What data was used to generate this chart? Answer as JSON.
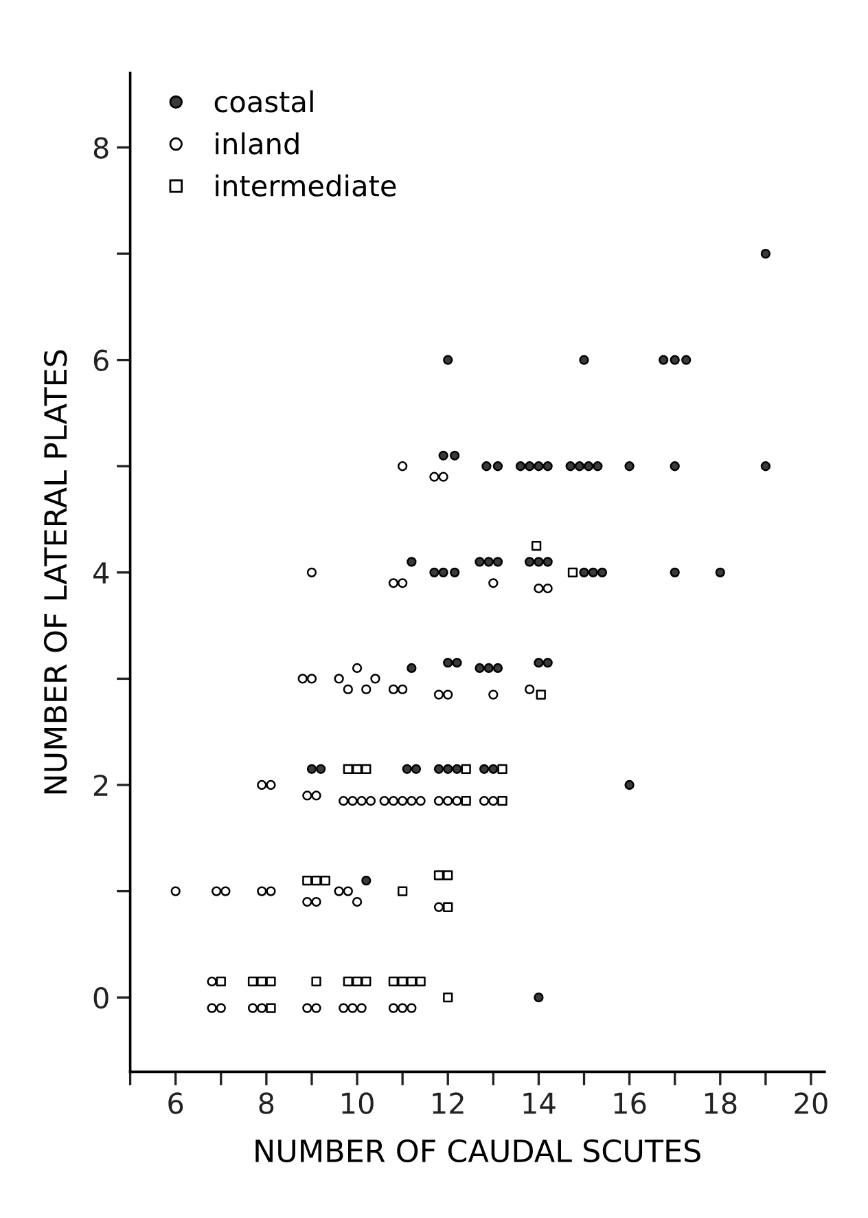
{
  "chart_data": {
    "type": "scatter",
    "xlabel": "NUMBER OF CAUDAL SCUTES",
    "ylabel": "NUMBER OF LATERAL PLATES",
    "xlim": [
      5,
      20.3
    ],
    "ylim": [
      -0.7,
      8.7
    ],
    "xticks": [
      {
        "value": 5,
        "label": null
      },
      6,
      {
        "value": 7,
        "label": null
      },
      8,
      {
        "value": 9,
        "label": null
      },
      10,
      {
        "value": 11,
        "label": null
      },
      12,
      {
        "value": 13,
        "label": null
      },
      14,
      {
        "value": 15,
        "label": null
      },
      16,
      {
        "value": 17,
        "label": null
      },
      18,
      {
        "value": 19,
        "label": null
      },
      20
    ],
    "yticks": [
      0,
      {
        "value": 1,
        "label": null
      },
      2,
      {
        "value": 3,
        "label": null
      },
      4,
      {
        "value": 5,
        "label": null
      },
      6,
      {
        "value": 7,
        "label": null
      },
      8
    ],
    "grid": false,
    "legend": "top left",
    "series": [
      {
        "name": "coastal",
        "color": "#3a3a3a",
        "marker": "circle",
        "x": [
          19,
          12,
          15,
          16.75,
          17,
          17.25,
          11.9,
          12.15,
          12.85,
          13.1,
          13.6,
          13.8,
          14.0,
          14.2,
          14.7,
          14.9,
          15.1,
          15.3,
          16,
          17,
          19,
          11.2,
          11.7,
          11.9,
          12.15,
          12.7,
          12.9,
          13.1,
          13.8,
          14.0,
          14.2,
          15.0,
          15.2,
          15.4,
          17,
          18,
          11.2,
          12.0,
          12.2,
          12.7,
          12.9,
          13.1,
          14.0,
          14.2,
          9.0,
          9.2,
          11.1,
          11.3,
          11.8,
          12.0,
          12.2,
          12.8,
          13.0,
          16,
          10.2,
          14
        ],
        "values": [
          7,
          6,
          6,
          6,
          6,
          6,
          5.1,
          5.1,
          5,
          5,
          5,
          5,
          5,
          5,
          5,
          5,
          5,
          5,
          5,
          5,
          5,
          4.1,
          4,
          4,
          4,
          4.1,
          4.1,
          4.1,
          4.1,
          4.1,
          4.1,
          4,
          4,
          4,
          4,
          4,
          3.1,
          3.15,
          3.15,
          3.1,
          3.1,
          3.1,
          3.15,
          3.15,
          2.15,
          2.15,
          2.15,
          2.15,
          2.15,
          2.15,
          2.15,
          2.15,
          2.15,
          2,
          1.1,
          0
        ]
      },
      {
        "name": "inland",
        "color": "#ffffff",
        "marker": "circle",
        "x": [
          11,
          11.7,
          11.9,
          9,
          10.8,
          11.0,
          13.0,
          14.0,
          14.2,
          8.8,
          9.0,
          9.6,
          9.8,
          10.0,
          10.2,
          10.4,
          10.8,
          11.0,
          11.8,
          12.0,
          13.0,
          13.8,
          7.9,
          8.1,
          8.9,
          9.1,
          9.7,
          9.9,
          10.1,
          10.3,
          10.6,
          10.8,
          11.0,
          11.2,
          11.4,
          11.8,
          12.0,
          12.2,
          12.8,
          13.0,
          6,
          6.9,
          7.1,
          7.9,
          8.1,
          8.9,
          9.1,
          9.6,
          9.8,
          10.0,
          11.8,
          6.8,
          7.0,
          6.8,
          7.7,
          7.9,
          8.9,
          9.1,
          9.7,
          9.9,
          10.1,
          10.8,
          11.0,
          11.2
        ],
        "values": [
          5,
          4.9,
          4.9,
          4,
          3.9,
          3.9,
          3.9,
          3.85,
          3.85,
          3,
          3,
          3,
          2.9,
          3.1,
          2.9,
          3,
          2.9,
          2.9,
          2.85,
          2.85,
          2.85,
          2.9,
          2,
          2,
          1.9,
          1.9,
          1.85,
          1.85,
          1.85,
          1.85,
          1.85,
          1.85,
          1.85,
          1.85,
          1.85,
          1.85,
          1.85,
          1.85,
          1.85,
          1.85,
          1,
          1,
          1,
          1,
          1,
          0.9,
          0.9,
          1,
          1,
          0.9,
          0.85,
          -0.1,
          -0.1,
          0.15,
          -0.1,
          -0.1,
          -0.1,
          -0.1,
          -0.1,
          -0.1,
          -0.1,
          -0.1,
          -0.1,
          -0.1
        ]
      },
      {
        "name": "intermediate",
        "color": "#ffffff",
        "marker": "square",
        "x": [
          14.75,
          13.95,
          14.05,
          9.8,
          10.0,
          10.2,
          12.4,
          12.4,
          13.2,
          13.2,
          8.9,
          9.1,
          9.3,
          11,
          11.8,
          12.0,
          12.0,
          7.0,
          7.7,
          7.9,
          8.1,
          8.1,
          9.1,
          9.8,
          10.0,
          10.2,
          10.8,
          11.0,
          11.2,
          11.4,
          12
        ],
        "values": [
          4,
          4.25,
          2.85,
          2.15,
          2.15,
          2.15,
          2.15,
          1.85,
          2.15,
          1.85,
          1.1,
          1.1,
          1.1,
          1,
          1.15,
          1.15,
          0.85,
          0.15,
          0.15,
          0.15,
          0.15,
          -0.1,
          0.15,
          0.15,
          0.15,
          0.15,
          0.15,
          0.15,
          0.15,
          0.15,
          0
        ]
      }
    ]
  }
}
